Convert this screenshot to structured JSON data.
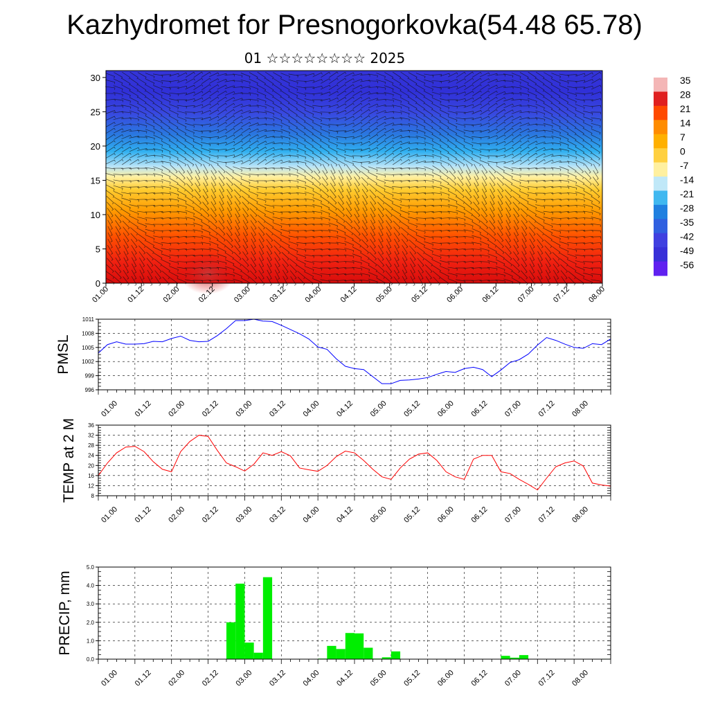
{
  "header": {
    "title": "Kazhydromet for Presnogorkovka(54.48 65.78)",
    "subtitle": "01 ☆☆☆☆☆☆☆☆ 2025"
  },
  "time_tick_labels": [
    "01.00",
    "01.12",
    "02.00",
    "02.12",
    "03.00",
    "03.12",
    "04.00",
    "04.12",
    "05.00",
    "05.12",
    "06.00",
    "06.12",
    "07.00",
    "07.12",
    "08.00"
  ],
  "colorbar": {
    "labels": [
      "35",
      "28",
      "21",
      "14",
      "7",
      "0",
      "-7",
      "-14",
      "-21",
      "-28",
      "-35",
      "-42",
      "-49",
      "-56"
    ],
    "colors": [
      "#f4b6b6",
      "#e02020",
      "#ff4a00",
      "#ff8c00",
      "#ffb000",
      "#ffd040",
      "#fff0a0",
      "#c0e8f8",
      "#40b8f0",
      "#2080e0",
      "#3060e0",
      "#4040e0",
      "#3830d8",
      "#6020f0"
    ]
  },
  "chart_data": [
    {
      "type": "heatmap",
      "id": "cross-section",
      "x_tick_labels_ref": "time_tick_labels",
      "ylim": [
        0,
        31
      ],
      "y_ticks": [
        0,
        5,
        10,
        15,
        20,
        25,
        30
      ],
      "y_tick_labels": [
        "0",
        "5",
        "10",
        "15",
        "20",
        "25",
        "30"
      ],
      "description_field": "temperature vs height with wind barbs",
      "overlay": "wind barbs",
      "colorbar_range": [
        -56,
        35
      ]
    },
    {
      "type": "line",
      "id": "pmsl",
      "ylabel": "PMSL",
      "ylim": [
        996,
        1011
      ],
      "y_ticks": [
        996,
        999,
        1002,
        1005,
        1008,
        1011
      ],
      "y_tick_labels": [
        "996",
        "999",
        "1002",
        "1005",
        "1008",
        "1011"
      ],
      "color": "#0000ff",
      "x_hours": [
        0,
        3,
        6,
        9,
        12,
        15,
        18,
        21,
        24,
        27,
        30,
        33,
        36,
        39,
        42,
        45,
        48,
        51,
        54,
        57,
        60,
        63,
        66,
        69,
        72,
        75,
        78,
        81,
        84,
        87,
        90,
        93,
        96,
        99,
        102,
        105,
        108,
        111,
        114,
        117,
        120,
        123,
        126,
        129,
        132,
        135,
        138,
        141,
        144,
        147,
        150,
        153,
        156,
        159,
        162,
        165,
        168
      ],
      "values": [
        1003.8,
        1005.6,
        1006.2,
        1005.7,
        1005.7,
        1005.8,
        1006.3,
        1006.2,
        1006.9,
        1007.4,
        1006.5,
        1006.2,
        1006.3,
        1007.5,
        1009.0,
        1010.7,
        1010.7,
        1011.0,
        1010.6,
        1010.5,
        1009.7,
        1008.8,
        1007.9,
        1006.8,
        1005.1,
        1004.6,
        1002.6,
        1001.0,
        1000.5,
        1000.3,
        998.8,
        997.3,
        997.3,
        998.0,
        998.1,
        998.3,
        998.6,
        999.3,
        999.9,
        999.7,
        1000.5,
        1000.8,
        1000.3,
        998.8,
        1000.2,
        1001.8,
        1002.4,
        1003.6,
        1005.5,
        1007.1,
        1006.5,
        1005.7,
        1005.0,
        1004.8,
        1005.8,
        1005.6,
        1006.8
      ]
    },
    {
      "type": "line",
      "id": "temp2m",
      "ylabel": "TEMP at 2 M",
      "ylim": [
        8,
        36
      ],
      "y_ticks": [
        8,
        12,
        16,
        20,
        24,
        28,
        32,
        36
      ],
      "y_tick_labels": [
        "8",
        "12",
        "16",
        "20",
        "24",
        "28",
        "32",
        "36"
      ],
      "color": "#ff0000",
      "x_hours": [
        0,
        3,
        6,
        9,
        12,
        15,
        18,
        21,
        24,
        27,
        30,
        33,
        36,
        39,
        42,
        45,
        48,
        51,
        54,
        57,
        60,
        63,
        66,
        69,
        72,
        75,
        78,
        81,
        84,
        87,
        90,
        93,
        96,
        99,
        102,
        105,
        108,
        111,
        114,
        117,
        120,
        123,
        126,
        129,
        132,
        135,
        138,
        141,
        144,
        147,
        150,
        153,
        156,
        159,
        162,
        165,
        168
      ],
      "values": [
        16.0,
        21.0,
        25.0,
        27.3,
        27.6,
        25.5,
        21.5,
        18.5,
        17.5,
        25.5,
        29.5,
        32.0,
        31.5,
        26.0,
        21.0,
        19.5,
        17.8,
        20.5,
        25.0,
        24.0,
        25.5,
        23.8,
        19.0,
        18.3,
        17.7,
        20.0,
        23.5,
        25.7,
        25.0,
        22.0,
        18.5,
        15.5,
        14.5,
        19.0,
        22.5,
        24.5,
        25.0,
        22.0,
        17.5,
        15.5,
        14.5,
        22.5,
        24.0,
        24.0,
        17.5,
        16.8,
        14.5,
        12.5,
        10.3,
        15.0,
        19.5,
        21.0,
        21.8,
        19.8,
        13.0,
        12.3,
        11.8
      ]
    },
    {
      "type": "bar",
      "id": "precip",
      "ylabel": "PRECIP, mm",
      "ylim": [
        0,
        5
      ],
      "y_ticks": [
        0,
        1,
        2,
        3,
        4,
        5
      ],
      "y_tick_labels": [
        "0.0",
        "1.0",
        "2.0",
        "3.0",
        "4.0",
        "5.0"
      ],
      "color": "#00ee00",
      "bin_hours": 3,
      "x_start_hours": [
        33,
        42,
        45,
        48,
        51,
        54,
        72,
        75,
        78,
        81,
        84,
        87,
        90,
        93,
        96,
        132,
        135,
        138,
        165
      ],
      "values": [
        0.02,
        2.0,
        4.1,
        0.9,
        0.35,
        4.45,
        0.03,
        0.72,
        0.55,
        1.42,
        1.4,
        0.62,
        0.03,
        0.1,
        0.42,
        0.18,
        0.08,
        0.22,
        0.02
      ]
    }
  ]
}
